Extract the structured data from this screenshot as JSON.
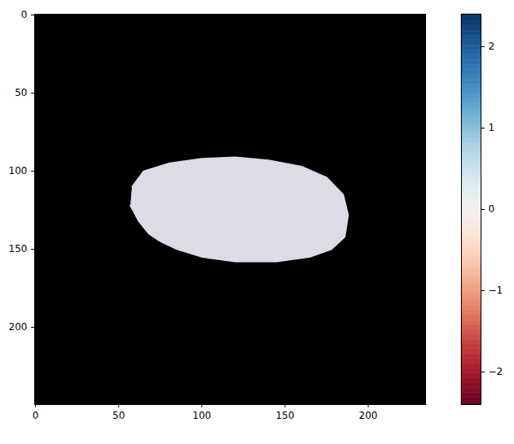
{
  "chart_data": {
    "type": "image",
    "xlim": [
      -0.5,
      234.5
    ],
    "ylim": [
      249.5,
      -0.5
    ],
    "xticks": [
      0,
      50,
      100,
      150,
      200
    ],
    "yticks": [
      0,
      50,
      100,
      150,
      200
    ],
    "color": "#000000",
    "shape": {
      "x": [
        58,
        65,
        80,
        100,
        120,
        140,
        160,
        175,
        185,
        188,
        186,
        178,
        165,
        145,
        120,
        100,
        85,
        75,
        68,
        62,
        57
      ],
      "y": [
        110,
        100,
        95,
        92,
        91,
        93,
        97,
        104,
        115,
        128,
        142,
        150,
        155,
        158,
        158,
        155,
        150,
        145,
        140,
        132,
        122
      ],
      "color": "#dcdce6"
    },
    "colorbar": {
      "color": "RdBu",
      "range": [
        -2.4,
        2.4
      ],
      "ticks": [
        {
          "value": -2,
          "label": "−2"
        },
        {
          "value": -1,
          "label": "−1"
        },
        0,
        1,
        2
      ]
    }
  }
}
